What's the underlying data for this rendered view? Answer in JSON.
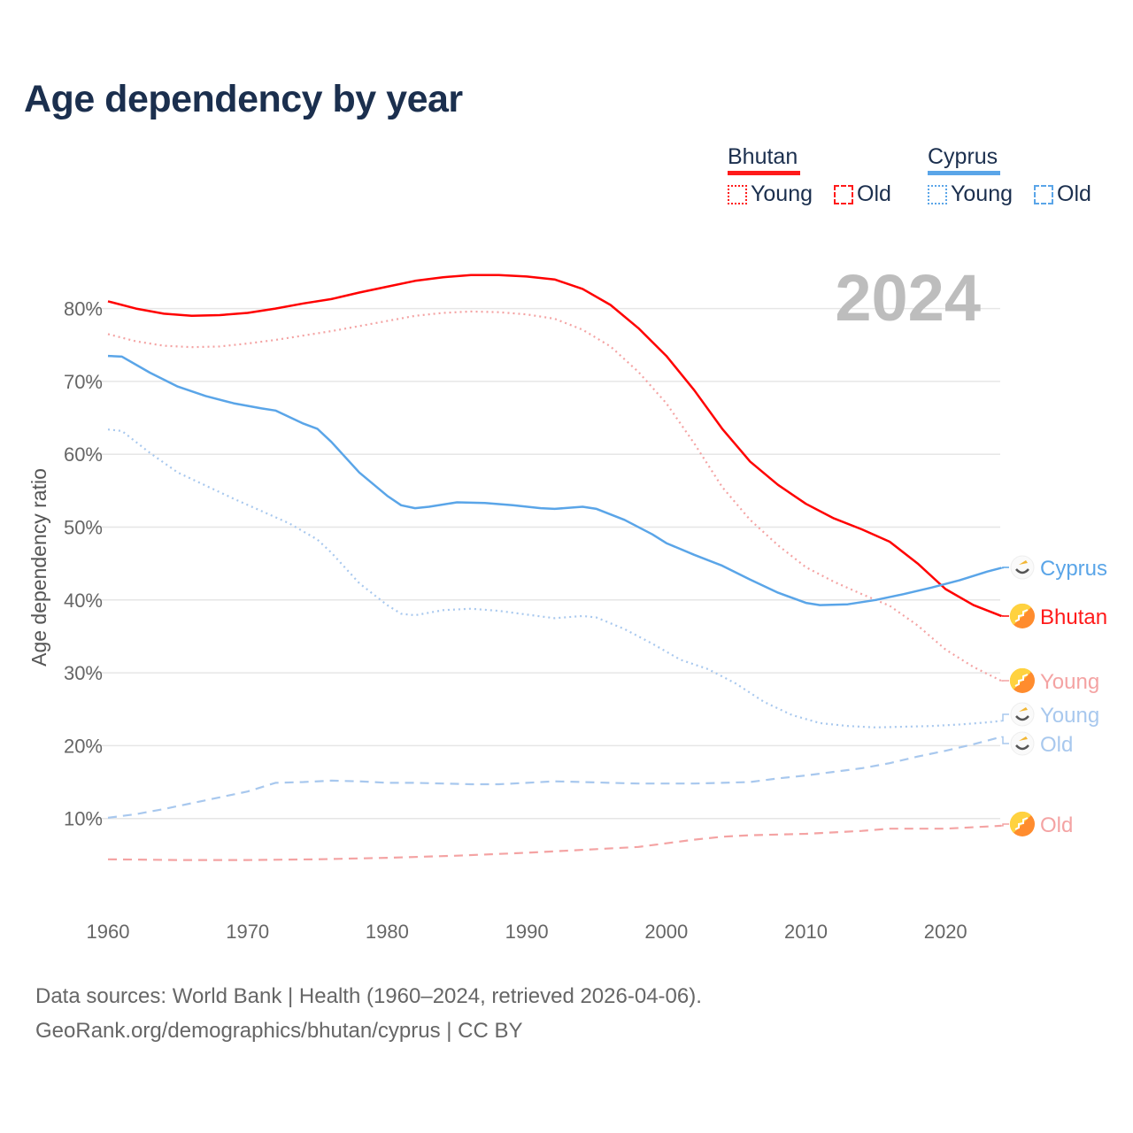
{
  "title": "Age dependency by year",
  "legend": {
    "countries": [
      {
        "name": "Bhutan",
        "color": "#ff1a1a",
        "items": [
          "Young",
          "Old"
        ]
      },
      {
        "name": "Cyprus",
        "color": "#5aa5e8",
        "items": [
          "Young",
          "Old"
        ]
      }
    ]
  },
  "year_badge": "2024",
  "footer": {
    "line1": "Data sources: World Bank | Health (1960–2024, retrieved 2026-04-06).",
    "line2": "GeoRank.org/demographics/bhutan/cyprus | CC BY"
  },
  "chart_data": {
    "type": "line",
    "title": "Age dependency by year",
    "xlabel": "",
    "ylabel": "Age dependency ratio",
    "xlim": [
      1960,
      2024
    ],
    "ylim": [
      0,
      85
    ],
    "x_ticks": [
      "1960",
      "1970",
      "1980",
      "1990",
      "2000",
      "2010",
      "2020"
    ],
    "y_ticks": [
      "10%",
      "20%",
      "30%",
      "40%",
      "50%",
      "60%",
      "70%",
      "80%"
    ],
    "grid": true,
    "legend_position": "top-right",
    "series": [
      {
        "name": "Bhutan",
        "country": "Bhutan",
        "kind": "Total",
        "end_label": "Bhutan",
        "color": "#ff0000",
        "label_color": "#ff1a1a",
        "style": "solid",
        "x": [
          1960,
          1962,
          1964,
          1966,
          1968,
          1970,
          1972,
          1974,
          1976,
          1978,
          1980,
          1982,
          1984,
          1986,
          1988,
          1990,
          1992,
          1994,
          1996,
          1998,
          2000,
          2002,
          2004,
          2006,
          2008,
          2010,
          2012,
          2014,
          2016,
          2018,
          2020,
          2022,
          2024
        ],
        "y": [
          81,
          80,
          79.3,
          79,
          79.1,
          79.4,
          80,
          80.7,
          81.3,
          82.2,
          83,
          83.8,
          84.3,
          84.6,
          84.6,
          84.4,
          84,
          82.7,
          80.5,
          77.3,
          73.5,
          68.8,
          63.5,
          59,
          55.8,
          53.2,
          51.2,
          49.7,
          48,
          45,
          41.5,
          39.3,
          37.8
        ]
      },
      {
        "name": "Bhutan Young",
        "country": "Bhutan",
        "kind": "Young",
        "end_label": "Young",
        "color": "#f4a3a3",
        "label_color": "#f4a3a3",
        "style": "dotted",
        "x": [
          1960,
          1962,
          1964,
          1966,
          1968,
          1970,
          1972,
          1974,
          1976,
          1978,
          1980,
          1982,
          1984,
          1986,
          1988,
          1990,
          1992,
          1994,
          1996,
          1998,
          2000,
          2002,
          2004,
          2006,
          2008,
          2010,
          2012,
          2014,
          2016,
          2018,
          2020,
          2022,
          2024
        ],
        "y": [
          76.5,
          75.5,
          74.9,
          74.7,
          74.8,
          75.2,
          75.7,
          76.3,
          76.9,
          77.6,
          78.3,
          79,
          79.4,
          79.6,
          79.5,
          79.2,
          78.6,
          77.1,
          74.8,
          71.3,
          67,
          61.5,
          55.5,
          51,
          47.5,
          44.5,
          42.5,
          40.8,
          39.2,
          36.5,
          33.2,
          30.8,
          28.9
        ]
      },
      {
        "name": "Bhutan Old",
        "country": "Bhutan",
        "kind": "Old",
        "end_label": "Old",
        "color": "#f4a3a3",
        "label_color": "#f4a3a3",
        "style": "dashed",
        "x": [
          1960,
          1965,
          1970,
          1975,
          1980,
          1985,
          1990,
          1995,
          1998,
          2000,
          2002,
          2004,
          2006,
          2010,
          2014,
          2016,
          2020,
          2024
        ],
        "y": [
          4.4,
          4.3,
          4.3,
          4.4,
          4.6,
          4.9,
          5.3,
          5.8,
          6.1,
          6.6,
          7.1,
          7.5,
          7.7,
          7.9,
          8.3,
          8.6,
          8.6,
          9.0
        ]
      },
      {
        "name": "Cyprus",
        "country": "Cyprus",
        "kind": "Total",
        "end_label": "Cyprus",
        "color": "#5aa5e8",
        "label_color": "#5aa5e8",
        "style": "solid",
        "x": [
          1960,
          1961,
          1963,
          1965,
          1967,
          1969,
          1971,
          1972,
          1974,
          1975,
          1976,
          1978,
          1980,
          1981,
          1982,
          1983,
          1985,
          1987,
          1989,
          1991,
          1992,
          1994,
          1995,
          1997,
          1999,
          2000,
          2002,
          2004,
          2006,
          2008,
          2010,
          2011,
          2013,
          2015,
          2017,
          2019,
          2021,
          2023,
          2024
        ],
        "y": [
          73.5,
          73.4,
          71.2,
          69.3,
          68,
          67,
          66.3,
          66,
          64.2,
          63.5,
          61.7,
          57.5,
          54.3,
          53,
          52.6,
          52.8,
          53.4,
          53.3,
          53,
          52.6,
          52.5,
          52.8,
          52.5,
          51,
          49,
          47.8,
          46.2,
          44.7,
          42.8,
          41,
          39.6,
          39.3,
          39.4,
          40,
          40.8,
          41.7,
          42.7,
          43.9,
          44.4
        ]
      },
      {
        "name": "Cyprus Young",
        "country": "Cyprus",
        "kind": "Young",
        "end_label": "Young",
        "color": "#a8c8ee",
        "label_color": "#a8c8ee",
        "style": "dotted",
        "x": [
          1960,
          1961,
          1963,
          1965,
          1967,
          1969,
          1971,
          1973,
          1975,
          1976,
          1978,
          1980,
          1981,
          1982,
          1984,
          1986,
          1988,
          1990,
          1992,
          1994,
          1995,
          1997,
          1999,
          2001,
          2003,
          2005,
          2007,
          2009,
          2011,
          2013,
          2015,
          2017,
          2019,
          2021,
          2023,
          2024
        ],
        "y": [
          63.4,
          63.2,
          60.2,
          57.5,
          55.7,
          53.9,
          52.2,
          50.5,
          48.3,
          46.5,
          42.3,
          39.3,
          38.1,
          37.9,
          38.6,
          38.8,
          38.5,
          38,
          37.5,
          37.8,
          37.6,
          36,
          34,
          31.8,
          30.5,
          28.5,
          26,
          24.2,
          23.1,
          22.7,
          22.5,
          22.6,
          22.7,
          22.9,
          23.2,
          23.4
        ]
      },
      {
        "name": "Cyprus Old",
        "country": "Cyprus",
        "kind": "Old",
        "end_label": "Old",
        "color": "#a8c8ee",
        "label_color": "#a8c8ee",
        "style": "dashed",
        "x": [
          1960,
          1962,
          1964,
          1966,
          1968,
          1970,
          1972,
          1974,
          1976,
          1978,
          1980,
          1982,
          1984,
          1986,
          1988,
          1990,
          1992,
          1994,
          1996,
          1998,
          2000,
          2002,
          2004,
          2006,
          2008,
          2010,
          2012,
          2014,
          2016,
          2018,
          2020,
          2022,
          2024
        ],
        "y": [
          10.1,
          10.6,
          11.3,
          12.1,
          12.9,
          13.7,
          14.9,
          15,
          15.2,
          15.1,
          14.9,
          14.9,
          14.8,
          14.7,
          14.7,
          14.9,
          15.1,
          15,
          14.9,
          14.8,
          14.8,
          14.8,
          14.9,
          15,
          15.5,
          15.9,
          16.4,
          16.9,
          17.6,
          18.5,
          19.3,
          20.2,
          21.2
        ]
      }
    ]
  }
}
